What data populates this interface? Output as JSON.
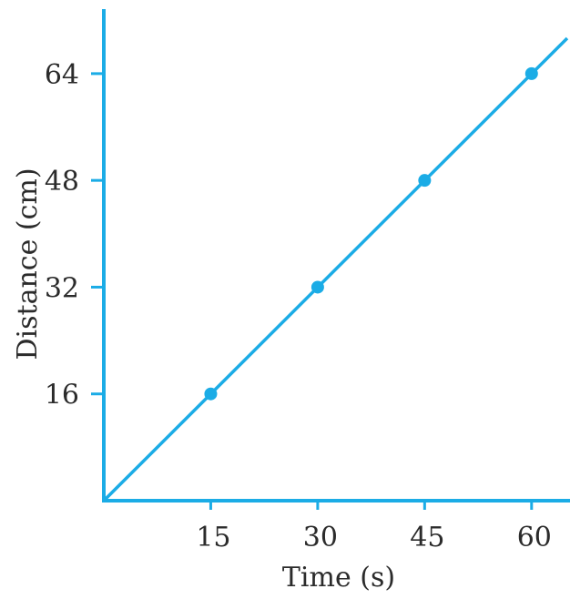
{
  "chart_data": {
    "type": "line",
    "xlabel": "Time (s)",
    "ylabel": "Distance (cm)",
    "x_ticks": [
      15,
      30,
      45,
      60
    ],
    "y_ticks": [
      16,
      32,
      48,
      64
    ],
    "xlim": [
      0,
      65
    ],
    "ylim": [
      0,
      73
    ],
    "grid": false,
    "series": [
      {
        "points": [
          {
            "x": 15,
            "y": 16
          },
          {
            "x": 30,
            "y": 32
          },
          {
            "x": 45,
            "y": 48
          },
          {
            "x": 60,
            "y": 64
          }
        ],
        "line": {
          "from": [
            0,
            0
          ],
          "to": [
            65,
            69.3
          ]
        }
      }
    ],
    "colors": {
      "line": "#1bace6",
      "axis": "#1bace6",
      "text": "#2b2b2b"
    }
  }
}
